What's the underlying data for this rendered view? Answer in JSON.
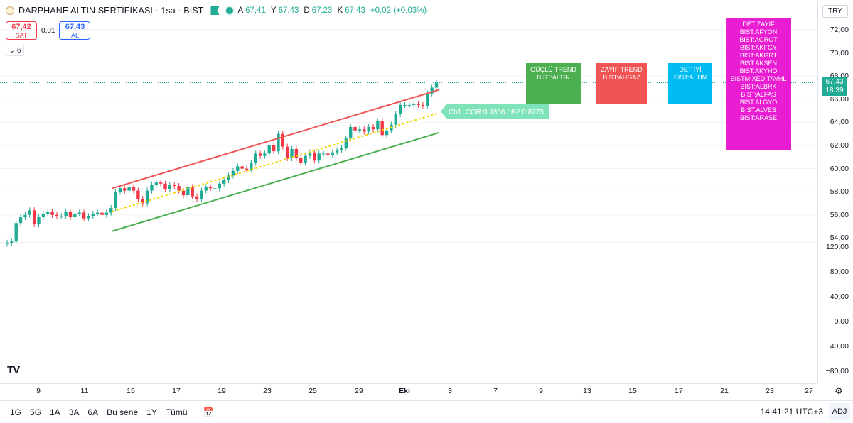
{
  "header": {
    "title": "DARPHANE ALTIN SERTİFİKASI · 1sa · BIST",
    "ohlc": [
      {
        "k": "A",
        "v": "67,41"
      },
      {
        "k": "Y",
        "v": "67,43"
      },
      {
        "k": "D",
        "v": "67,23"
      },
      {
        "k": "K",
        "v": "67,43"
      }
    ],
    "change": "+0,02 (+0,03%)"
  },
  "trade": {
    "sell_price": "67,42",
    "sell_label": "SAT",
    "spread": "0,01",
    "buy_price": "67,43",
    "buy_label": "AL",
    "collapse_count": "6"
  },
  "indicator_boxes": [
    {
      "lines": [
        "GÜÇLÜ TREND",
        "BIST:ALTIN"
      ],
      "color": "#4caf50"
    },
    {
      "lines": [
        "ZAYIF TREND",
        "BIST:AHGAZ"
      ],
      "color": "#f05454"
    },
    {
      "lines": [
        "DET İYİ",
        "BIST:ALTIN"
      ],
      "color": "#00bcf2"
    },
    {
      "lines": [
        "DET ZAYIF",
        "BIST:AFYON",
        "BIST:AGROT",
        "BIST:AKFGY",
        "BIST:AKGRT",
        "BIST:AKSEN",
        "BIST:AKYHO",
        "BISTMIXED:TAVHL",
        "BIST:ALBRK",
        "BIST:ALFAS",
        "BIST:ALGYO",
        "BIST:ALVES",
        "BIST:ARASE"
      ],
      "color": "#e91ed2"
    }
  ],
  "channel_label": "Ch1: COR:0.9366 / R2:0.8773",
  "price_scale": {
    "currency": "TRY",
    "ticks": [
      "72,00",
      "70,00",
      "68,00",
      "66,00",
      "64,00",
      "62,00",
      "60,00",
      "58,00",
      "56,00",
      "54,00"
    ],
    "last_price": "67,43",
    "countdown": "18:39"
  },
  "osc_scale": {
    "ticks": [
      "120,00",
      "80,00",
      "40,00",
      "0,00",
      "−40,00",
      "−80,00"
    ]
  },
  "time_axis": {
    "ticks": [
      "9",
      "11",
      "15",
      "17",
      "19",
      "23",
      "25",
      "29",
      "Eki",
      "3",
      "7",
      "9",
      "13",
      "15",
      "17",
      "21",
      "23",
      "27"
    ]
  },
  "bottom_bar": {
    "ranges": [
      "1G",
      "5G",
      "1A",
      "3A",
      "6A",
      "Bu sene",
      "1Y",
      "Tümü"
    ],
    "clock": "14:41:21 UTC+3",
    "adj": "ADJ"
  },
  "colors": {
    "up": "#22ab94",
    "down": "#f23645",
    "channel_upper": "#f05454",
    "channel_lower": "#4caf50",
    "channel_mid": "#f5d300"
  },
  "chart_data": {
    "type": "candlestick",
    "ylim": [
      53,
      73
    ],
    "channel": {
      "upper": [
        58.3,
        66.8
      ],
      "mid": [
        56.3,
        64.8
      ],
      "lower": [
        54.6,
        63.1
      ]
    },
    "closes": [
      53.6,
      53.7,
      55.3,
      55.8,
      56.0,
      56.4,
      55.2,
      55.8,
      56.1,
      56.3,
      56.0,
      55.9,
      55.9,
      56.3,
      55.8,
      56.1,
      56.2,
      55.7,
      55.9,
      56.1,
      56.2,
      56.0,
      56.2,
      56.6,
      58.0,
      58.3,
      58.1,
      58.4,
      58.1,
      57.4,
      57.0,
      58.1,
      58.6,
      58.8,
      58.7,
      58.2,
      58.6,
      58.5,
      58.1,
      57.7,
      58.4,
      57.6,
      57.4,
      58.1,
      58.4,
      58.3,
      58.3,
      58.7,
      59.0,
      59.4,
      59.8,
      60.2,
      60.0,
      59.9,
      60.5,
      61.3,
      61.1,
      61.3,
      62.0,
      61.5,
      63.0,
      61.9,
      60.9,
      61.7,
      60.9,
      60.5,
      61.1,
      61.4,
      60.7,
      61.3,
      61.3,
      61.2,
      61.4,
      61.6,
      61.8,
      62.6,
      63.6,
      63.3,
      63.4,
      63.2,
      63.6,
      63.4,
      64.1,
      62.9,
      63.3,
      63.8,
      64.7,
      65.5,
      65.5,
      65.5,
      65.6,
      65.5,
      65.4,
      66.5,
      67.0,
      67.4
    ]
  }
}
